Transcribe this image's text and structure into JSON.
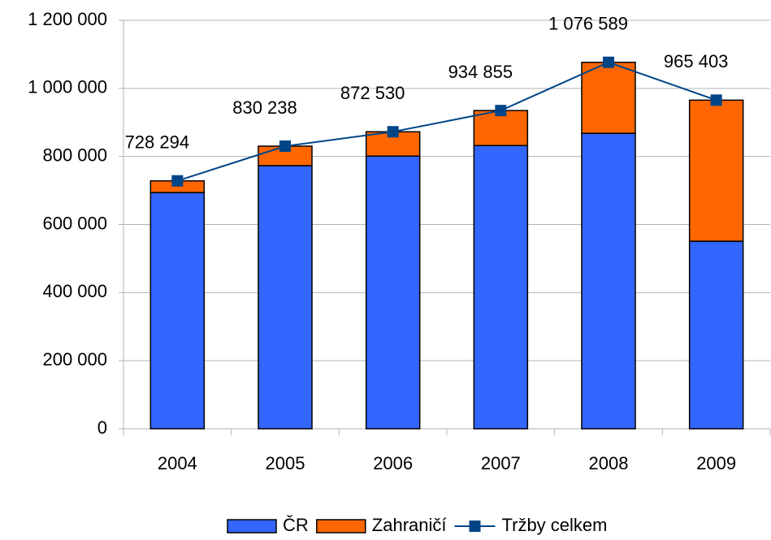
{
  "chart_data": {
    "type": "stacked-bar-line",
    "categories": [
      "2004",
      "2005",
      "2006",
      "2007",
      "2008",
      "2009"
    ],
    "series": [
      {
        "name": "ČR",
        "color": "#3366ff",
        "kind": "bar",
        "values": [
          694000,
          773000,
          801000,
          832000,
          868000,
          551000
        ]
      },
      {
        "name": "Zahraničí",
        "color": "#ff6600",
        "kind": "bar",
        "values": [
          34294,
          57238,
          71530,
          102855,
          208589,
          414403
        ]
      },
      {
        "name": "Tržby celkem",
        "color": "#004586",
        "kind": "line",
        "values": [
          728294,
          830238,
          872530,
          934855,
          1076589,
          965403
        ],
        "value_labels": [
          "728 294",
          "830 238",
          "872 530",
          "934 855",
          "1 076 589",
          "965 403"
        ]
      }
    ],
    "ylim": [
      0,
      1200000
    ],
    "yticks": [
      0,
      {
        "value": 200000,
        "label": "200 000"
      },
      {
        "value": 400000,
        "label": "400 000"
      },
      {
        "value": 600000,
        "label": "600 000"
      },
      {
        "value": 800000,
        "label": "800 000"
      },
      {
        "value": 1000000,
        "label": "1 000 000"
      },
      {
        "value": 1200000,
        "label": "1 200 000"
      }
    ],
    "grid": true,
    "legend": "bottom"
  }
}
